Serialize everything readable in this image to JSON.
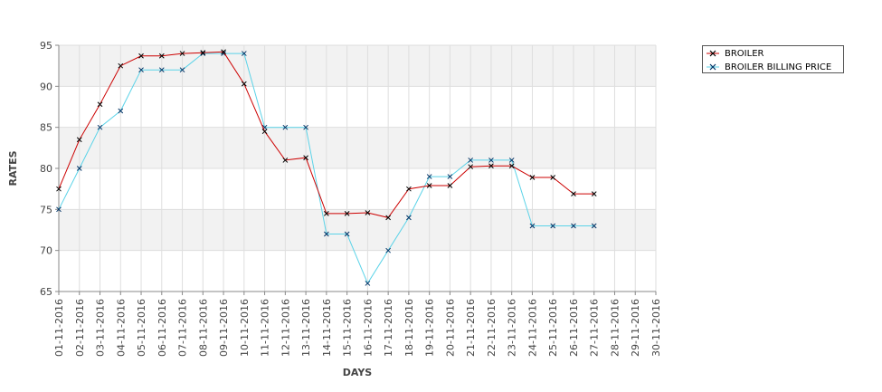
{
  "chart_data": {
    "type": "line",
    "xlabel": "DAYS",
    "ylabel": "RATES",
    "ylim": [
      65,
      95
    ],
    "yticks": [
      65,
      70,
      75,
      80,
      85,
      90,
      95
    ],
    "categories": [
      "01-11-2016",
      "02-11-2016",
      "03-11-2016",
      "04-11-2016",
      "05-11-2016",
      "06-11-2016",
      "07-11-2016",
      "08-11-2016",
      "09-11-2016",
      "10-11-2016",
      "11-11-2016",
      "12-11-2016",
      "13-11-2016",
      "14-11-2016",
      "15-11-2016",
      "16-11-2016",
      "17-11-2016",
      "18-11-2016",
      "19-11-2016",
      "20-11-2016",
      "21-11-2016",
      "22-11-2016",
      "23-11-2016",
      "24-11-2016",
      "25-11-2016",
      "26-11-2016",
      "27-11-2016",
      "28-11-2016",
      "29-11-2016",
      "30-11-2016"
    ],
    "series": [
      {
        "name": "BROILER",
        "color": "#cc0000",
        "marker_color": "#000000",
        "values": [
          77.5,
          83.5,
          87.8,
          92.5,
          93.7,
          93.7,
          94.0,
          94.1,
          94.2,
          90.3,
          84.5,
          81.0,
          81.3,
          74.5,
          74.5,
          74.6,
          74.0,
          77.5,
          77.9,
          77.9,
          80.2,
          80.3,
          80.3,
          78.9,
          78.9,
          76.9,
          76.9,
          null,
          null,
          null
        ]
      },
      {
        "name": "BROILER BILLING PRICE",
        "color": "#5bd3e8",
        "marker_color": "#003366",
        "values": [
          75.0,
          80.0,
          85.0,
          87.0,
          92.0,
          92.0,
          92.0,
          94.0,
          94.0,
          94.0,
          85.0,
          85.0,
          85.0,
          72.0,
          72.0,
          66.0,
          70.0,
          74.0,
          79.0,
          79.0,
          81.0,
          81.0,
          81.0,
          73.0,
          73.0,
          73.0,
          73.0,
          null,
          null,
          null
        ]
      }
    ],
    "grid": true,
    "legend_position": "top-right"
  }
}
